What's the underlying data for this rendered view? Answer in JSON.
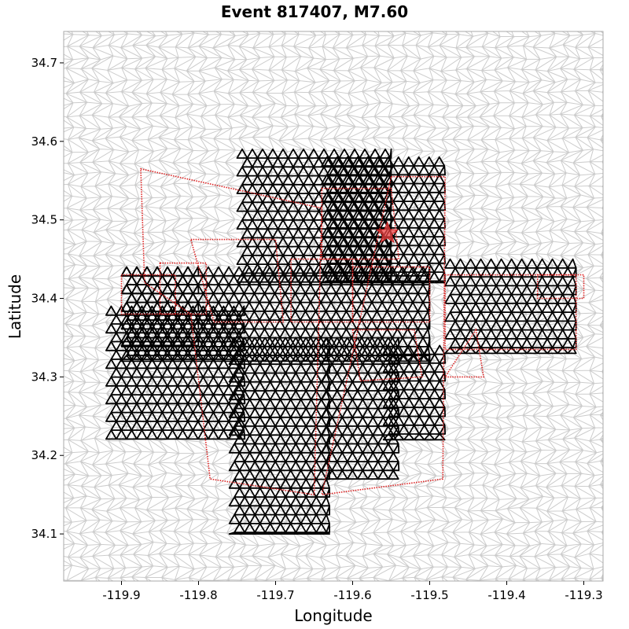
{
  "chart_data": {
    "type": "map-mesh",
    "title": "Event 817407, M7.60",
    "xlabel": "Longitude",
    "ylabel": "Latitude",
    "xlim": [
      -119.975,
      -119.275
    ],
    "ylim": [
      34.04,
      34.74
    ],
    "x_ticks": [
      {
        "value": -119.9,
        "label": "-119.9"
      },
      {
        "value": -119.8,
        "label": "-119.8"
      },
      {
        "value": -119.7,
        "label": "-119.7"
      },
      {
        "value": -119.6,
        "label": "-119.6"
      },
      {
        "value": -119.5,
        "label": "-119.5"
      },
      {
        "value": -119.4,
        "label": "-119.4"
      },
      {
        "value": -119.3,
        "label": "-119.3"
      }
    ],
    "y_ticks": [
      {
        "value": 34.1,
        "label": "34.1"
      },
      {
        "value": 34.2,
        "label": "34.2"
      },
      {
        "value": 34.3,
        "label": "34.3"
      },
      {
        "value": 34.4,
        "label": "34.4"
      },
      {
        "value": 34.5,
        "label": "34.5"
      },
      {
        "value": 34.6,
        "label": "34.6"
      },
      {
        "value": 34.7,
        "label": "34.7"
      }
    ],
    "grid": false,
    "colors": {
      "background_mesh": "#cccccc",
      "ruptured_mesh": "#000000",
      "fault_outline": "#dd2222",
      "epicenter": "#ee4444"
    },
    "epicenter": {
      "lon": -119.555,
      "lat": 34.483,
      "marker": "star"
    },
    "ruptured_elements": [
      {
        "lon": [
          -119.75,
          -119.55
        ],
        "lat": [
          34.42,
          34.59
        ]
      },
      {
        "lon": [
          -119.64,
          -119.48
        ],
        "lat": [
          34.42,
          34.58
        ]
      },
      {
        "lon": [
          -119.9,
          -119.5
        ],
        "lat": [
          34.32,
          34.44
        ]
      },
      {
        "lon": [
          -119.9,
          -119.8
        ],
        "lat": [
          34.34,
          34.44
        ]
      },
      {
        "lon": [
          -119.92,
          -119.74
        ],
        "lat": [
          34.22,
          34.39
        ]
      },
      {
        "lon": [
          -119.76,
          -119.63
        ],
        "lat": [
          34.1,
          34.35
        ]
      },
      {
        "lon": [
          -119.64,
          -119.54
        ],
        "lat": [
          34.17,
          34.35
        ]
      },
      {
        "lon": [
          -119.56,
          -119.48
        ],
        "lat": [
          34.22,
          34.34
        ]
      },
      {
        "lon": [
          -119.48,
          -119.31
        ],
        "lat": [
          34.33,
          34.45
        ]
      }
    ],
    "fault_outlines": [
      [
        [
          -119.875,
          34.565
        ],
        [
          -119.64,
          34.515
        ],
        [
          -119.65,
          34.15
        ],
        [
          -119.785,
          34.17
        ],
        [
          -119.81,
          34.38
        ],
        [
          -119.87,
          34.42
        ]
      ],
      [
        [
          -119.9,
          34.43
        ],
        [
          -119.83,
          34.43
        ],
        [
          -119.83,
          34.38
        ],
        [
          -119.9,
          34.38
        ]
      ],
      [
        [
          -119.85,
          34.445
        ],
        [
          -119.79,
          34.445
        ],
        [
          -119.79,
          34.38
        ],
        [
          -119.85,
          34.38
        ]
      ],
      [
        [
          -119.81,
          34.475
        ],
        [
          -119.7,
          34.475
        ],
        [
          -119.69,
          34.37
        ],
        [
          -119.78,
          34.37
        ]
      ],
      [
        [
          -119.68,
          34.45
        ],
        [
          -119.6,
          34.45
        ],
        [
          -119.6,
          34.37
        ],
        [
          -119.68,
          34.37
        ]
      ],
      [
        [
          -119.64,
          34.54
        ],
        [
          -119.55,
          34.54
        ],
        [
          -119.54,
          34.45
        ],
        [
          -119.64,
          34.45
        ]
      ],
      [
        [
          -119.55,
          34.555
        ],
        [
          -119.48,
          34.555
        ],
        [
          -119.483,
          34.17
        ],
        [
          -119.64,
          34.15
        ]
      ],
      [
        [
          -119.6,
          34.44
        ],
        [
          -119.5,
          34.44
        ],
        [
          -119.5,
          34.37
        ],
        [
          -119.6,
          34.37
        ]
      ],
      [
        [
          -119.6,
          34.36
        ],
        [
          -119.52,
          34.36
        ],
        [
          -119.51,
          34.3
        ],
        [
          -119.59,
          34.295
        ]
      ],
      [
        [
          -119.48,
          34.43
        ],
        [
          -119.31,
          34.43
        ],
        [
          -119.31,
          34.335
        ],
        [
          -119.48,
          34.335
        ]
      ],
      [
        [
          -119.44,
          34.36
        ],
        [
          -119.43,
          34.3
        ],
        [
          -119.48,
          34.3
        ]
      ],
      [
        [
          -119.36,
          34.43
        ],
        [
          -119.3,
          34.43
        ],
        [
          -119.3,
          34.4
        ],
        [
          -119.36,
          34.4
        ]
      ]
    ]
  }
}
